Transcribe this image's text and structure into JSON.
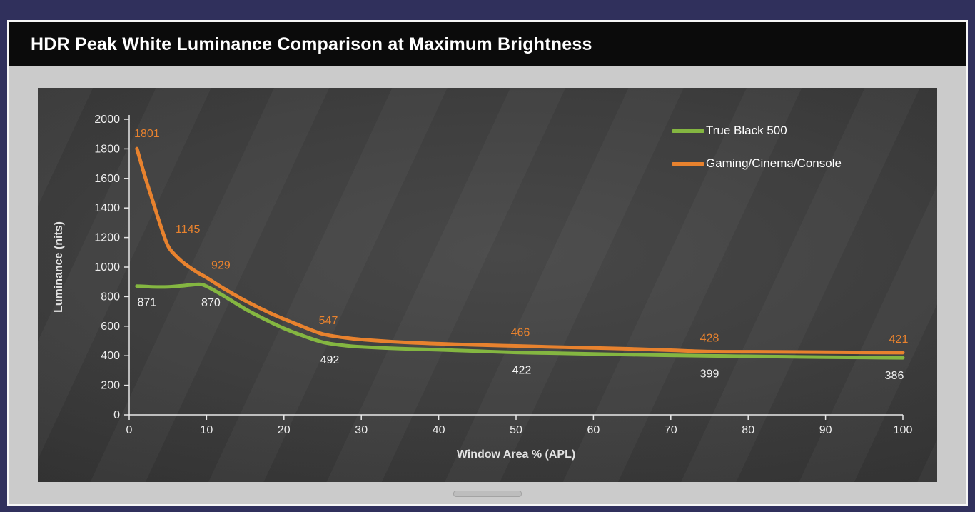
{
  "chart_data": {
    "type": "line",
    "title": "HDR Peak White Luminance Comparison at Maximum Brightness",
    "xlabel": "Window Area % (APL)",
    "ylabel": "Luminance (nits)",
    "xlim": [
      0,
      100
    ],
    "ylim": [
      0,
      2000
    ],
    "x_ticks": [
      0,
      10,
      20,
      30,
      40,
      50,
      60,
      70,
      80,
      90,
      100
    ],
    "y_ticks": [
      0,
      200,
      400,
      600,
      800,
      1000,
      1200,
      1400,
      1600,
      1800,
      2000
    ],
    "grid": false,
    "legend_position": "top-right",
    "axis_color": "#e8e8e8",
    "tick_label_color": "#ededed",
    "series": [
      {
        "name": "True Black 500",
        "color": "#84b641",
        "label_color": "#f2f2f2",
        "points": [
          [
            1,
            871
          ],
          [
            3,
            866
          ],
          [
            5,
            866
          ],
          [
            7,
            874
          ],
          [
            9,
            883
          ],
          [
            10,
            870
          ],
          [
            12,
            812
          ],
          [
            15,
            716
          ],
          [
            18,
            634
          ],
          [
            20,
            585
          ],
          [
            22,
            544
          ],
          [
            25,
            492
          ],
          [
            28,
            468
          ],
          [
            30,
            460
          ],
          [
            35,
            448
          ],
          [
            40,
            440
          ],
          [
            45,
            431
          ],
          [
            50,
            422
          ],
          [
            55,
            417
          ],
          [
            60,
            412
          ],
          [
            65,
            407
          ],
          [
            70,
            403
          ],
          [
            75,
            399
          ],
          [
            80,
            396
          ],
          [
            85,
            393
          ],
          [
            90,
            390
          ],
          [
            95,
            388
          ],
          [
            100,
            386
          ]
        ],
        "labels": [
          {
            "x": 1,
            "y": 871,
            "text": "871",
            "dx": 14,
            "dy": 28
          },
          {
            "x": 10,
            "y": 870,
            "text": "870",
            "dx": 6,
            "dy": 28
          },
          {
            "x": 25,
            "y": 492,
            "text": "492",
            "dx": 10,
            "dy": 30
          },
          {
            "x": 50,
            "y": 422,
            "text": "422",
            "dx": 8,
            "dy": 30
          },
          {
            "x": 75,
            "y": 399,
            "text": "399",
            "dx": 0,
            "dy": 30
          },
          {
            "x": 100,
            "y": 386,
            "text": "386",
            "dx": -12,
            "dy": 30
          }
        ]
      },
      {
        "name": "Gaming/Cinema/Console",
        "color": "#e8822e",
        "label_color": "#e8822e",
        "points": [
          [
            1,
            1801
          ],
          [
            2,
            1620
          ],
          [
            3,
            1455
          ],
          [
            4,
            1290
          ],
          [
            5,
            1145
          ],
          [
            6,
            1078
          ],
          [
            7,
            1030
          ],
          [
            8,
            992
          ],
          [
            9,
            958
          ],
          [
            10,
            929
          ],
          [
            12,
            862
          ],
          [
            15,
            772
          ],
          [
            18,
            694
          ],
          [
            20,
            648
          ],
          [
            22,
            606
          ],
          [
            25,
            547
          ],
          [
            28,
            521
          ],
          [
            30,
            510
          ],
          [
            35,
            492
          ],
          [
            40,
            481
          ],
          [
            45,
            473
          ],
          [
            50,
            466
          ],
          [
            55,
            459
          ],
          [
            60,
            453
          ],
          [
            65,
            446
          ],
          [
            70,
            437
          ],
          [
            75,
            428
          ],
          [
            80,
            427
          ],
          [
            85,
            426
          ],
          [
            90,
            424
          ],
          [
            95,
            422
          ],
          [
            100,
            421
          ]
        ],
        "labels": [
          {
            "x": 1,
            "y": 1801,
            "text": "1801",
            "dx": 14,
            "dy": -16
          },
          {
            "x": 5,
            "y": 1145,
            "text": "1145",
            "dx": 28,
            "dy": -18
          },
          {
            "x": 10,
            "y": 929,
            "text": "929",
            "dx": 20,
            "dy": -12
          },
          {
            "x": 25,
            "y": 547,
            "text": "547",
            "dx": 8,
            "dy": -14
          },
          {
            "x": 50,
            "y": 466,
            "text": "466",
            "dx": 6,
            "dy": -14
          },
          {
            "x": 75,
            "y": 428,
            "text": "428",
            "dx": 0,
            "dy": -14
          },
          {
            "x": 100,
            "y": 421,
            "text": "421",
            "dx": -6,
            "dy": -14
          }
        ]
      }
    ]
  }
}
